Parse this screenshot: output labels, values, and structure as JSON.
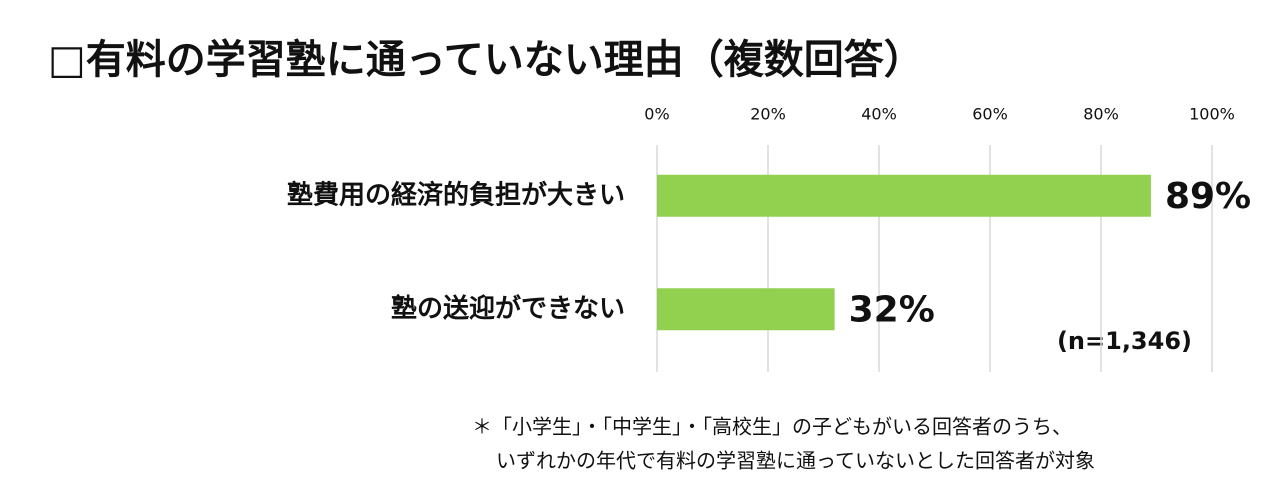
{
  "chart_data": {
    "type": "bar",
    "orientation": "horizontal",
    "title": "□有料の学習塾に通っていない理由（複数回答）",
    "categories": [
      "塾費用の経済的負担が大きい",
      "塾の送迎ができない"
    ],
    "values": [
      89,
      32
    ],
    "value_labels": [
      "89%",
      "32%"
    ],
    "color": "#92d050",
    "xlim": [
      0,
      100
    ],
    "xticks": [
      {
        "value": 0,
        "label": "0%"
      },
      {
        "value": 20,
        "label": "20%"
      },
      {
        "value": 40,
        "label": "40%"
      },
      {
        "value": 60,
        "label": "60%"
      },
      {
        "value": 80,
        "label": "80%"
      },
      {
        "value": 100,
        "label": "100%"
      }
    ],
    "grid": true,
    "annotation": "(n=1,346)",
    "notes": [
      "＊「小学生」・「中学生」・「高校生」の子どもがいる回答者のうち、",
      "いずれかの年代で有料の学習塾に通っていないとした回答者が対象"
    ]
  }
}
